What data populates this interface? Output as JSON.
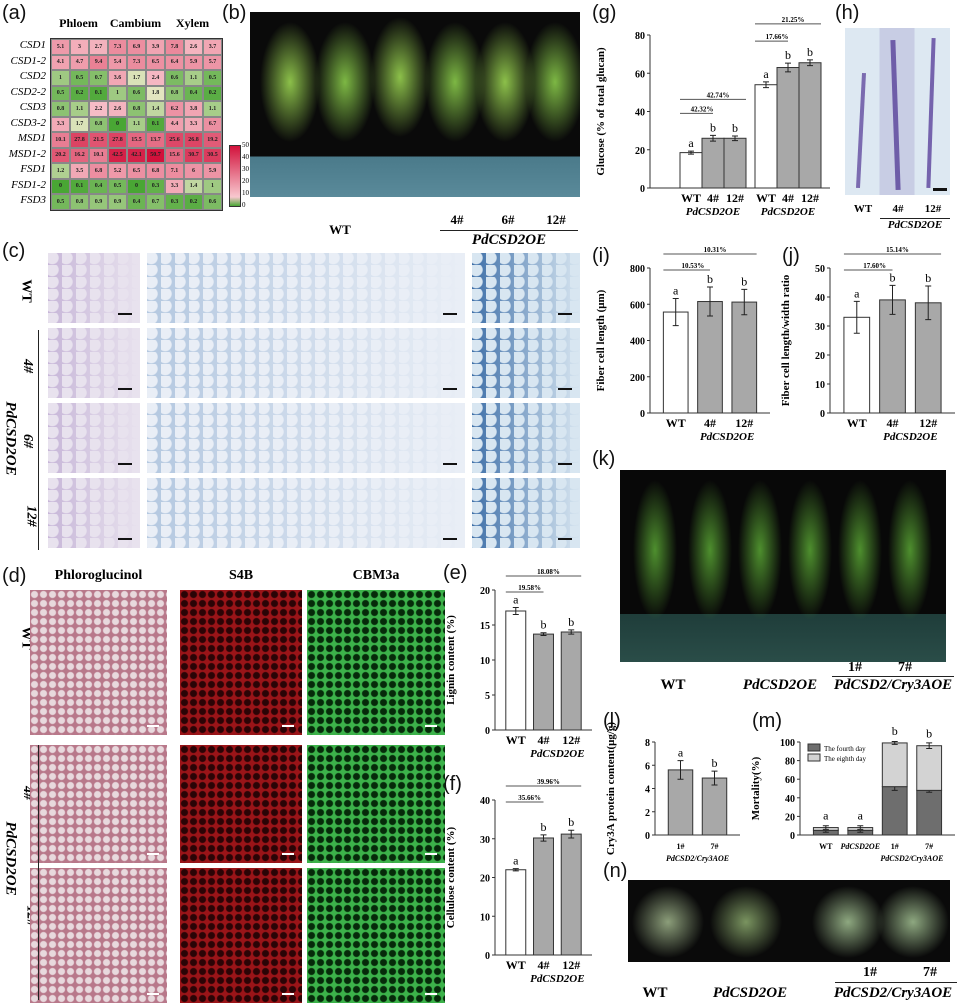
{
  "panel_labels": {
    "a": "(a)",
    "b": "(b)",
    "c": "(c)",
    "d": "(d)",
    "e": "(e)",
    "f": "(f)",
    "g": "(g)",
    "h": "(h)",
    "i": "(i)",
    "j": "(j)",
    "k": "(k)",
    "l": "(l)",
    "m": "(m)",
    "n": "(n)"
  },
  "heatmap": {
    "columns_groups": [
      "Phloem",
      "Cambium",
      "Xylem"
    ],
    "rows": [
      "CSD1",
      "CSD1-2",
      "CSD2",
      "CSD2-2",
      "CSD3",
      "CSD3-2",
      "MSD1",
      "MSD1-2",
      "FSD1",
      "FSD1-2",
      "FSD3"
    ],
    "values": [
      [
        5.1,
        3.0,
        2.7,
        7.3,
        6.9,
        3.9,
        7.8,
        2.6,
        3.7
      ],
      [
        4.1,
        4.7,
        9.4,
        5.4,
        7.3,
        6.5,
        6.4,
        5.9,
        5.7
      ],
      [
        1.0,
        0.5,
        0.7,
        3.6,
        1.7,
        2.4,
        0.6,
        1.1,
        0.5
      ],
      [
        0.5,
        0.2,
        0.1,
        1.0,
        0.6,
        1.8,
        0.8,
        0.4,
        0.2
      ],
      [
        0.8,
        1.1,
        2.2,
        2.6,
        0.8,
        1.4,
        6.2,
        3.8,
        1.1
      ],
      [
        3.3,
        1.7,
        0.8,
        0,
        1.1,
        0.1,
        4.4,
        3.3,
        6.7
      ],
      [
        10.1,
        27.8,
        21.5,
        27.8,
        15.5,
        13.7,
        25.6,
        26.8,
        19.2
      ],
      [
        20.2,
        16.2,
        10.1,
        42.5,
        42.1,
        50.7,
        15.6,
        30.7,
        30.5
      ],
      [
        1.2,
        3.5,
        6.8,
        5.2,
        6.5,
        6.8,
        7.1,
        6.0,
        5.9
      ],
      [
        0,
        0.1,
        0.4,
        0.5,
        0,
        0.3,
        3.3,
        1.4,
        1.0
      ],
      [
        0.5,
        0.8,
        0.9,
        0.9,
        0.4,
        0.7,
        0.3,
        0.2,
        0.6
      ]
    ],
    "colorbar_ticks": [
      "50",
      "40",
      "30",
      "20",
      "10",
      "0"
    ],
    "colors": {
      "low": "#49a634",
      "mid": "#f4eccf",
      "high": "#d2123c"
    }
  },
  "b": {
    "wt": "WT",
    "l4": "4#",
    "l6": "6#",
    "l12": "12#",
    "group": "PdCSD2OE"
  },
  "c": {
    "rows": [
      "WT",
      "4#",
      "6#",
      "12#"
    ],
    "group": "PdCSD2OE"
  },
  "d": {
    "headers": [
      "Phloroglucinol",
      "S4B",
      "CBM3a"
    ],
    "rows": [
      "WT",
      "4#",
      "12#"
    ],
    "group": "PdCSD2OE"
  },
  "h": {
    "labels": [
      "WT",
      "4#",
      "12#"
    ],
    "group": "PdCSD2OE"
  },
  "k": {
    "wt": "WT",
    "oe": "PdCSD2OE",
    "l1": "1#",
    "l7": "7#",
    "group": "PdCSD2/Cry3AOE"
  },
  "n": {
    "wt": "WT",
    "oe": "PdCSD2OE",
    "l1": "1#",
    "l7": "7#",
    "group": "PdCSD2/Cry3AOE"
  },
  "chart_data": [
    {
      "id": "e",
      "type": "bar",
      "ylabel": "Lignin content (%)",
      "ylim": [
        0,
        20
      ],
      "yticks": [
        0,
        5,
        10,
        15,
        20
      ],
      "categories": [
        "WT",
        "4#",
        "12#"
      ],
      "group_label": "PdCSD2OE",
      "values": [
        17.0,
        13.7,
        14.0
      ],
      "errors": [
        0.5,
        0.2,
        0.3
      ],
      "letters": [
        "a",
        "b",
        "b"
      ],
      "annotations": [
        "19.58%",
        "18.08%"
      ]
    },
    {
      "id": "f",
      "type": "bar",
      "ylabel": "Cellulose content (%)",
      "ylim": [
        0,
        40
      ],
      "yticks": [
        0,
        10,
        20,
        30,
        40
      ],
      "categories": [
        "WT",
        "4#",
        "12#"
      ],
      "group_label": "PdCSD2OE",
      "values": [
        22.0,
        30.2,
        31.2
      ],
      "errors": [
        0.3,
        0.8,
        1.0
      ],
      "letters": [
        "a",
        "b",
        "b"
      ],
      "annotations": [
        "35.66%",
        "39.96%"
      ]
    },
    {
      "id": "g",
      "type": "bar",
      "ylabel": "Glucose (% of total glucan)",
      "ylim": [
        0,
        80
      ],
      "yticks": [
        0,
        20,
        40,
        60,
        80
      ],
      "categories": [
        "WT",
        "4#",
        "12#",
        "WT",
        "4#",
        "12#"
      ],
      "group_label": "PdCSD2OE",
      "values": [
        18.5,
        26.0,
        26.0,
        54.0,
        63.0,
        65.5
      ],
      "errors": [
        0.8,
        1.5,
        1.2,
        1.5,
        2.3,
        1.5
      ],
      "letters": [
        "a",
        "b",
        "b",
        "a",
        "b",
        "b"
      ],
      "annotations": [
        "42.32%",
        "42.74%",
        "17.66%",
        "21.25%"
      ]
    },
    {
      "id": "i",
      "type": "bar",
      "ylabel": "Fiber cell length (μm)",
      "ylim": [
        0,
        800
      ],
      "yticks": [
        0,
        200,
        400,
        600,
        800
      ],
      "categories": [
        "WT",
        "4#",
        "12#"
      ],
      "group_label": "PdCSD2OE",
      "values": [
        557,
        615,
        612
      ],
      "errors": [
        75,
        80,
        70
      ],
      "letters": [
        "a",
        "b",
        "b"
      ],
      "annotations": [
        "10.53%",
        "10.31%"
      ]
    },
    {
      "id": "j",
      "type": "bar",
      "ylabel": "Fiber cell length/width ratio",
      "ylim": [
        0,
        50
      ],
      "yticks": [
        0,
        10,
        20,
        30,
        40,
        50
      ],
      "categories": [
        "WT",
        "4#",
        "12#"
      ],
      "group_label": "PdCSD2OE",
      "values": [
        33.0,
        39.0,
        38.0
      ],
      "errors": [
        5.5,
        5.0,
        5.8
      ],
      "letters": [
        "a",
        "b",
        "b"
      ],
      "annotations": [
        "17.60%",
        "15.14%"
      ]
    },
    {
      "id": "l",
      "type": "bar",
      "ylabel": "Cry3A protein content(μg/g)",
      "ylim": [
        0,
        8
      ],
      "yticks": [
        0,
        2,
        4,
        6,
        8
      ],
      "categories": [
        "1#",
        "7#"
      ],
      "group_label": "PdCSD2/Cry3AOE",
      "values": [
        5.6,
        4.9
      ],
      "errors": [
        0.8,
        0.6
      ],
      "letters": [
        "a",
        "b"
      ],
      "annotations": []
    },
    {
      "id": "m",
      "type": "stacked-bar",
      "ylabel": "Mortality(%)",
      "ylim": [
        0,
        100
      ],
      "yticks": [
        0,
        20,
        40,
        60,
        80,
        100
      ],
      "categories": [
        "WT",
        "PdCSD2OE",
        "1#",
        "7#"
      ],
      "group_label": "PdCSD2/Cry3AOE",
      "series": [
        {
          "name": "The fourth day",
          "values": [
            5,
            5,
            52,
            48
          ],
          "errors": [
            2,
            2,
            4,
            2
          ],
          "color": "#6e6e6e"
        },
        {
          "name": "The eighth day",
          "values": [
            3,
            3,
            47,
            48
          ],
          "errors": [
            2,
            2,
            1.5,
            3
          ],
          "color": "#d3d3d3"
        }
      ],
      "letters": [
        "a",
        "a",
        "b",
        "b"
      ],
      "legend": "top-left"
    }
  ]
}
